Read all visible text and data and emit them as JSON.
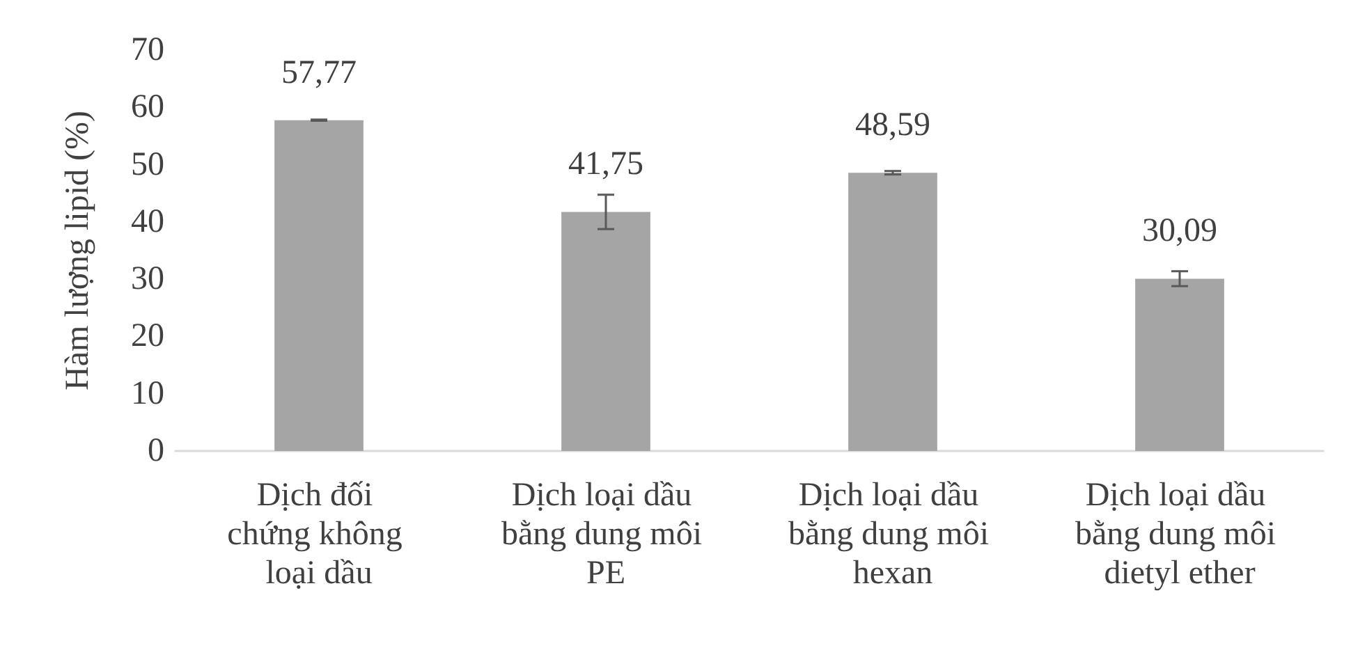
{
  "chart_data": {
    "type": "bar",
    "ylabel": "Hàm lượng lipid (%)",
    "categories": [
      "Dịch đối chứng không loại dầu",
      "Dịch loại dầu bằng dung môi PE",
      "Dịch loại dầu bằng dung môi hexan",
      "Dịch loại dầu bằng dung môi dietyl ether"
    ],
    "values": [
      57.77,
      41.75,
      48.59,
      30.09
    ],
    "value_labels": [
      "57,77",
      "41,75",
      "48,59",
      "30,09"
    ],
    "errors": [
      0.1,
      3,
      0.3,
      1.3
    ],
    "color": "#a5a5a5",
    "ylim": [
      0,
      70
    ],
    "yticks": [
      0,
      10,
      20,
      30,
      40,
      50,
      60,
      70
    ],
    "grid": false
  }
}
